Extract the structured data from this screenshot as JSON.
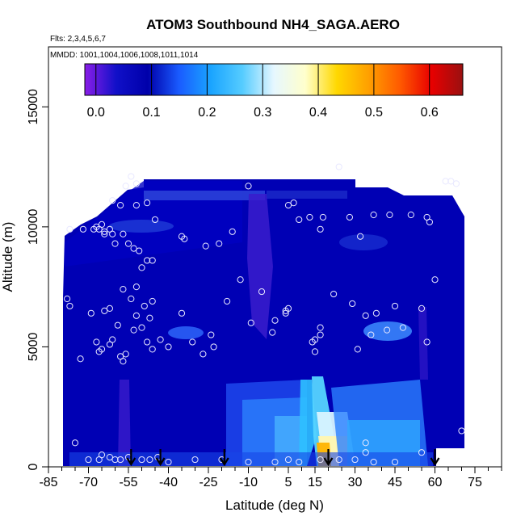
{
  "chart_data": {
    "type": "heatmap",
    "title": "ATOM3 Southbound NH4_SAGA.AERO",
    "flights_label": "Flts: 2,3,4,5,6,7",
    "dates_label": "MMDD: 1001,1004,1006,1008,1011,1014",
    "xlabel": "Latitude (deg N)",
    "ylabel": "Altitude (m)",
    "xlim": [
      -85,
      85
    ],
    "ylim": [
      0,
      17500
    ],
    "x_ticks": [
      "-85",
      "-70",
      "-55",
      "-40",
      "-25",
      "-10",
      "5",
      "15",
      "30",
      "45",
      "60",
      "75"
    ],
    "x_tick_values": [
      -85,
      -70,
      -55,
      -40,
      -25,
      -10,
      5,
      15,
      30,
      45,
      60,
      75
    ],
    "y_ticks": [
      "0",
      "5000",
      "10000",
      "15000"
    ],
    "y_tick_values": [
      0,
      5000,
      10000,
      15000
    ],
    "colorbar": {
      "range": [
        -0.02,
        0.66
      ],
      "tick_labels": [
        "0.0",
        "0.1",
        "0.2",
        "0.3",
        "0.4",
        "0.5",
        "0.6"
      ],
      "tick_values": [
        0.0,
        0.1,
        0.2,
        0.3,
        0.4,
        0.5,
        0.6
      ],
      "colors": [
        "#8a1ee8",
        "#1010c8",
        "#0000aa",
        "#1a5cff",
        "#1aa4ff",
        "#55ccff",
        "#e6f7ff",
        "#ffffcc",
        "#ffd800",
        "#ffa000",
        "#ff5a00",
        "#e80000",
        "#9a1010"
      ]
    },
    "profile_arrows_lat": [
      -54,
      -43,
      -19,
      20,
      60
    ],
    "sample_points": [
      {
        "lat": -78,
        "alt": 7000
      },
      {
        "lat": -77,
        "alt": 6700
      },
      {
        "lat": -73,
        "alt": 4500
      },
      {
        "lat": -69,
        "alt": 6400
      },
      {
        "lat": -67,
        "alt": 5200
      },
      {
        "lat": -66,
        "alt": 4800
      },
      {
        "lat": -65,
        "alt": 4900
      },
      {
        "lat": -64,
        "alt": 6500
      },
      {
        "lat": -62,
        "alt": 5100
      },
      {
        "lat": -61,
        "alt": 5300
      },
      {
        "lat": -59,
        "alt": 5900
      },
      {
        "lat": -58,
        "alt": 4600
      },
      {
        "lat": -57,
        "alt": 4400
      },
      {
        "lat": -56,
        "alt": 4700
      },
      {
        "lat": -53,
        "alt": 5700
      },
      {
        "lat": -50,
        "alt": 5800
      },
      {
        "lat": -48,
        "alt": 5200
      },
      {
        "lat": -46,
        "alt": 4900
      },
      {
        "lat": -62,
        "alt": 6600
      },
      {
        "lat": -57,
        "alt": 7400
      },
      {
        "lat": -54,
        "alt": 7000
      },
      {
        "lat": -52,
        "alt": 6300
      },
      {
        "lat": -49,
        "alt": 6700
      },
      {
        "lat": -47,
        "alt": 6200
      },
      {
        "lat": -46,
        "alt": 6900
      },
      {
        "lat": -52,
        "alt": 7500
      },
      {
        "lat": -50,
        "alt": 8300
      },
      {
        "lat": -48,
        "alt": 8600
      },
      {
        "lat": -46,
        "alt": 8600
      },
      {
        "lat": -51,
        "alt": 9000
      },
      {
        "lat": -53,
        "alt": 9100
      },
      {
        "lat": -55,
        "alt": 9300
      },
      {
        "lat": -57,
        "alt": 9700
      },
      {
        "lat": -60,
        "alt": 9300
      },
      {
        "lat": -61,
        "alt": 9700
      },
      {
        "lat": -62,
        "alt": 9900
      },
      {
        "lat": -64,
        "alt": 9800
      },
      {
        "lat": -66,
        "alt": 9900
      },
      {
        "lat": -67,
        "alt": 10000
      },
      {
        "lat": -68,
        "alt": 9900
      },
      {
        "lat": -77,
        "alt": 9900
      },
      {
        "lat": -72,
        "alt": 9900
      },
      {
        "lat": -65,
        "alt": 10100
      },
      {
        "lat": -64,
        "alt": 9700
      },
      {
        "lat": -52,
        "alt": 10900
      },
      {
        "lat": -48,
        "alt": 11000
      },
      {
        "lat": -45,
        "alt": 10300
      },
      {
        "lat": -52,
        "alt": 11800
      },
      {
        "lat": -56,
        "alt": 11700
      },
      {
        "lat": -58,
        "alt": 10900
      },
      {
        "lat": -61,
        "alt": 11100
      },
      {
        "lat": -54,
        "alt": 12100
      },
      {
        "lat": -35,
        "alt": 9600
      },
      {
        "lat": -34,
        "alt": 9500
      },
      {
        "lat": -26,
        "alt": 9200
      },
      {
        "lat": -21,
        "alt": 9300
      },
      {
        "lat": -16,
        "alt": 9800
      },
      {
        "lat": -13,
        "alt": 7800
      },
      {
        "lat": -18,
        "alt": 6900
      },
      {
        "lat": -35,
        "alt": 6400
      },
      {
        "lat": -40,
        "alt": 5000
      },
      {
        "lat": -31,
        "alt": 5200
      },
      {
        "lat": -24,
        "alt": 5500
      },
      {
        "lat": -23,
        "alt": 5000
      },
      {
        "lat": -27,
        "alt": 4700
      },
      {
        "lat": -43,
        "alt": 5300
      },
      {
        "lat": -9,
        "alt": 6000
      },
      {
        "lat": -5,
        "alt": 7300
      },
      {
        "lat": -1,
        "alt": 5600
      },
      {
        "lat": 0,
        "alt": 6100
      },
      {
        "lat": 4,
        "alt": 6500
      },
      {
        "lat": 5,
        "alt": 6600
      },
      {
        "lat": 4,
        "alt": 6400
      },
      {
        "lat": 5,
        "alt": 10900
      },
      {
        "lat": 7,
        "alt": 11000
      },
      {
        "lat": 9,
        "alt": 10300
      },
      {
        "lat": 17,
        "alt": 9900
      },
      {
        "lat": 18,
        "alt": 10400
      },
      {
        "lat": 13,
        "alt": 10400
      },
      {
        "lat": 22,
        "alt": 7200
      },
      {
        "lat": 17,
        "alt": 5800
      },
      {
        "lat": 17,
        "alt": 5500
      },
      {
        "lat": 15,
        "alt": 5300
      },
      {
        "lat": 15,
        "alt": 4800
      },
      {
        "lat": 14,
        "alt": 5200
      },
      {
        "lat": 29,
        "alt": 6800
      },
      {
        "lat": 31,
        "alt": 4900
      },
      {
        "lat": 34,
        "alt": 6300
      },
      {
        "lat": 36,
        "alt": 5500
      },
      {
        "lat": 38,
        "alt": 6400
      },
      {
        "lat": 42,
        "alt": 5700
      },
      {
        "lat": 45,
        "alt": 6700
      },
      {
        "lat": 48,
        "alt": 5800
      },
      {
        "lat": 55,
        "alt": 6600
      },
      {
        "lat": 57,
        "alt": 5200
      },
      {
        "lat": 60,
        "alt": 7800
      },
      {
        "lat": 28,
        "alt": 10400
      },
      {
        "lat": 32,
        "alt": 9600
      },
      {
        "lat": 37,
        "alt": 10500
      },
      {
        "lat": 43,
        "alt": 10500
      },
      {
        "lat": 51,
        "alt": 10500
      },
      {
        "lat": 57,
        "alt": 10400
      },
      {
        "lat": 58,
        "alt": 10200
      },
      {
        "lat": 64,
        "alt": 11900
      },
      {
        "lat": 66,
        "alt": 11900
      },
      {
        "lat": 68,
        "alt": 11800
      },
      {
        "lat": 24,
        "alt": 12500
      },
      {
        "lat": -10,
        "alt": 11700
      },
      {
        "lat": -75,
        "alt": 1000
      },
      {
        "lat": 70,
        "alt": 1500
      },
      {
        "lat": 55,
        "alt": 600
      },
      {
        "lat": 34,
        "alt": 1000
      },
      {
        "lat": 34,
        "alt": 600
      },
      {
        "lat": -70,
        "alt": 300
      },
      {
        "lat": -66,
        "alt": 300
      },
      {
        "lat": -60,
        "alt": 300
      },
      {
        "lat": -55,
        "alt": 400
      },
      {
        "lat": -50,
        "alt": 300
      },
      {
        "lat": -47,
        "alt": 300
      },
      {
        "lat": -40,
        "alt": 200
      },
      {
        "lat": -30,
        "alt": 300
      },
      {
        "lat": -20,
        "alt": 300
      },
      {
        "lat": -10,
        "alt": 200
      },
      {
        "lat": 0,
        "alt": 200
      },
      {
        "lat": 5,
        "alt": 300
      },
      {
        "lat": 9,
        "alt": 200
      },
      {
        "lat": 17,
        "alt": 300
      },
      {
        "lat": 24,
        "alt": 300
      },
      {
        "lat": 30,
        "alt": 300
      },
      {
        "lat": 37,
        "alt": 200
      },
      {
        "lat": 45,
        "alt": 200
      },
      {
        "lat": -58,
        "alt": 300
      },
      {
        "lat": -62,
        "alt": 400
      },
      {
        "lat": -65,
        "alt": 500
      },
      {
        "lat": -44,
        "alt": 400
      }
    ]
  }
}
